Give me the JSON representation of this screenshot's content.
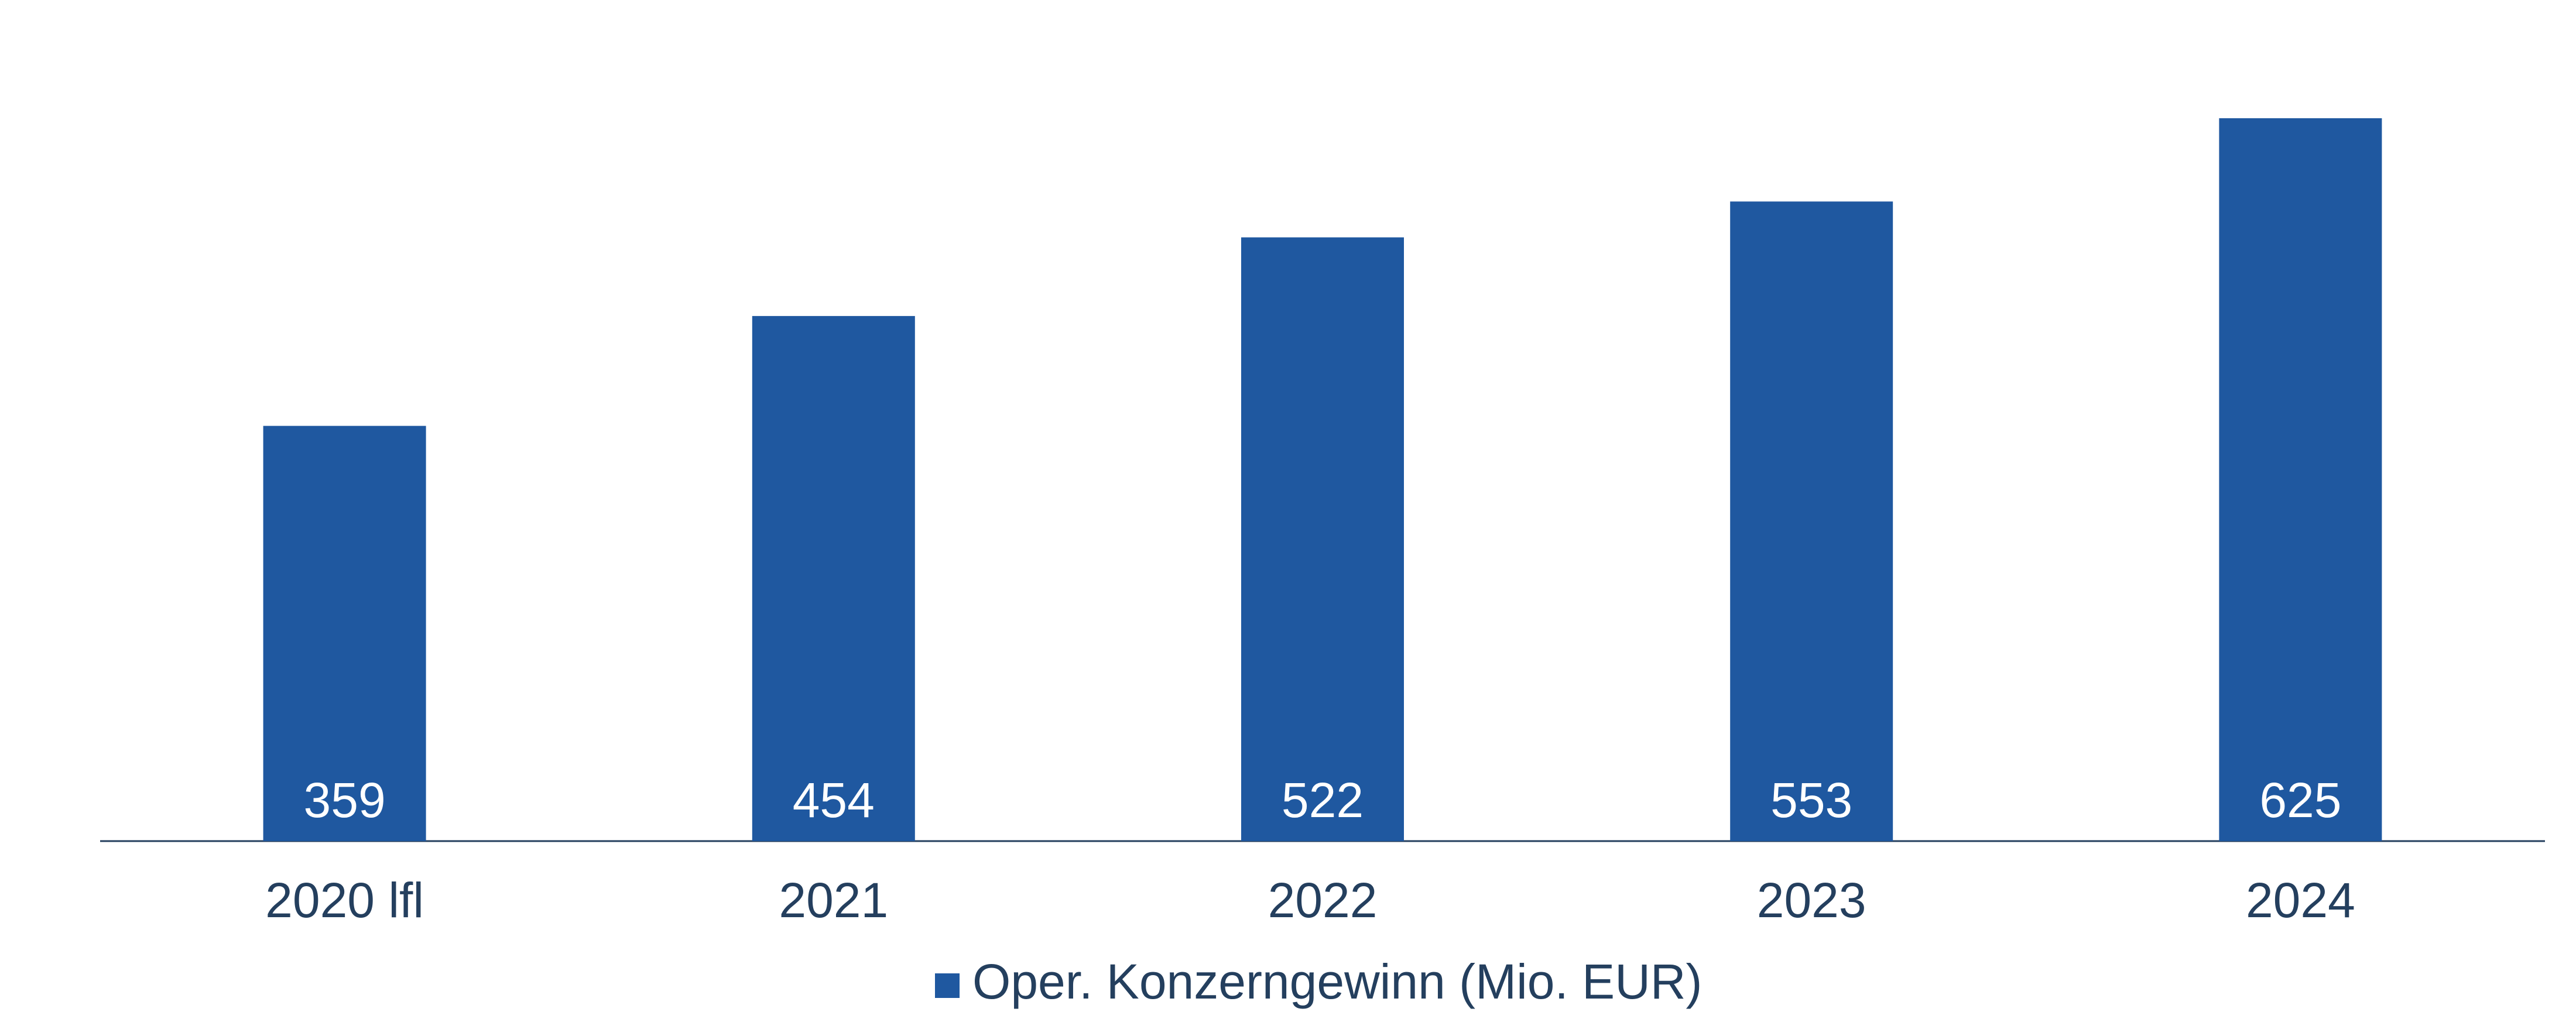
{
  "chart_data": {
    "type": "bar",
    "categories": [
      "2020 lfl",
      "2021",
      "2022",
      "2023",
      "2024"
    ],
    "series": [
      {
        "name": "Oper. Konzerngewinn (Mio. EUR)",
        "color": "#1f58a0",
        "values": [
          359,
          454,
          522,
          553,
          625
        ]
      }
    ],
    "legend": "bottom"
  }
}
